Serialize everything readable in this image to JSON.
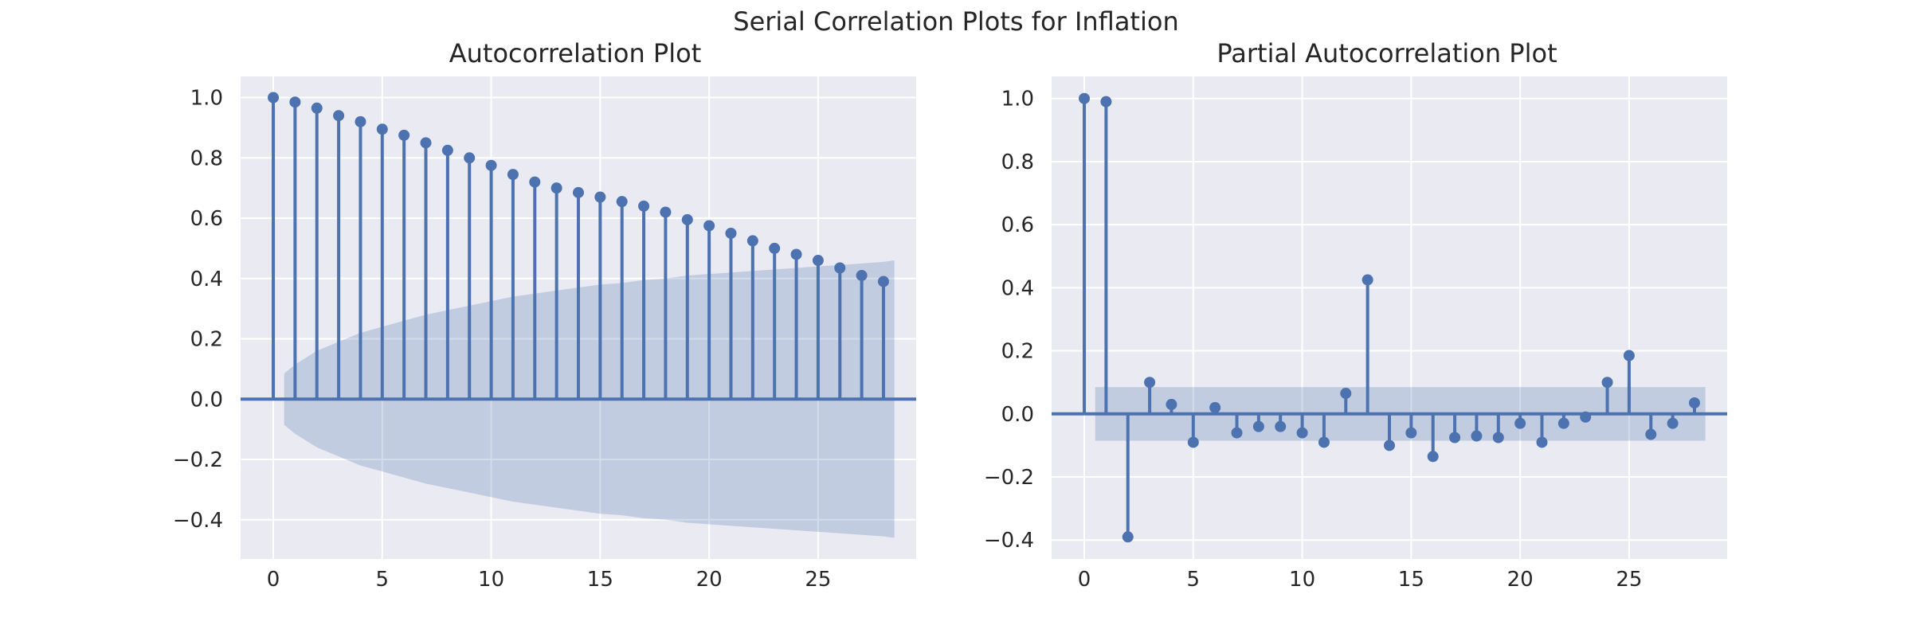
{
  "figure": {
    "suptitle": "Serial Correlation Plots for Inflation"
  },
  "chart_data": [
    {
      "type": "stem",
      "title": "Autocorrelation Plot",
      "xlabel": "",
      "ylabel": "",
      "xlim": [
        -1.5,
        29.5
      ],
      "ylim": [
        -0.53,
        1.07
      ],
      "xticks": [
        0,
        5,
        10,
        15,
        20,
        25
      ],
      "yticks": [
        -0.4,
        -0.2,
        0.0,
        0.2,
        0.4,
        0.6,
        0.8,
        1.0
      ],
      "ytick_labels": [
        "−0.4",
        "−0.2",
        "0.0",
        "0.2",
        "0.4",
        "0.6",
        "0.8",
        "1.0"
      ],
      "xtick_labels": [
        "0",
        "5",
        "10",
        "15",
        "20",
        "25"
      ],
      "grid": true,
      "color": "#4c72b0",
      "lags": [
        0,
        1,
        2,
        3,
        4,
        5,
        6,
        7,
        8,
        9,
        10,
        11,
        12,
        13,
        14,
        15,
        16,
        17,
        18,
        19,
        20,
        21,
        22,
        23,
        24,
        25,
        26,
        27,
        28
      ],
      "values": [
        1.0,
        0.985,
        0.965,
        0.94,
        0.92,
        0.895,
        0.875,
        0.85,
        0.825,
        0.8,
        0.775,
        0.745,
        0.72,
        0.7,
        0.685,
        0.67,
        0.655,
        0.64,
        0.62,
        0.595,
        0.575,
        0.55,
        0.525,
        0.5,
        0.48,
        0.46,
        0.435,
        0.41,
        0.39
      ],
      "confidence_band": {
        "x": [
          0.5,
          1,
          2,
          3,
          4,
          5,
          6,
          7,
          8,
          9,
          10,
          11,
          12,
          13,
          14,
          15,
          16,
          17,
          18,
          19,
          20,
          21,
          22,
          23,
          24,
          25,
          26,
          27,
          28,
          28.5
        ],
        "upper": [
          0.085,
          0.115,
          0.16,
          0.19,
          0.22,
          0.24,
          0.26,
          0.28,
          0.295,
          0.31,
          0.325,
          0.34,
          0.35,
          0.36,
          0.37,
          0.38,
          0.385,
          0.395,
          0.4,
          0.41,
          0.415,
          0.42,
          0.425,
          0.43,
          0.435,
          0.44,
          0.445,
          0.45,
          0.455,
          0.46
        ]
      }
    },
    {
      "type": "stem",
      "title": "Partial Autocorrelation Plot",
      "xlabel": "",
      "ylabel": "",
      "xlim": [
        -1.5,
        29.5
      ],
      "ylim": [
        -0.46,
        1.07
      ],
      "xticks": [
        0,
        5,
        10,
        15,
        20,
        25
      ],
      "yticks": [
        -0.4,
        -0.2,
        0.0,
        0.2,
        0.4,
        0.6,
        0.8,
        1.0
      ],
      "ytick_labels": [
        "−0.4",
        "−0.2",
        "0.0",
        "0.2",
        "0.4",
        "0.6",
        "0.8",
        "1.0"
      ],
      "xtick_labels": [
        "0",
        "5",
        "10",
        "15",
        "20",
        "25"
      ],
      "grid": true,
      "color": "#4c72b0",
      "lags": [
        0,
        1,
        2,
        3,
        4,
        5,
        6,
        7,
        8,
        9,
        10,
        11,
        12,
        13,
        14,
        15,
        16,
        17,
        18,
        19,
        20,
        21,
        22,
        23,
        24,
        25,
        26,
        27,
        28
      ],
      "values": [
        1.0,
        0.99,
        -0.39,
        0.1,
        0.03,
        -0.09,
        0.02,
        -0.06,
        -0.04,
        -0.04,
        -0.06,
        -0.09,
        0.065,
        0.425,
        -0.1,
        -0.06,
        -0.135,
        -0.075,
        -0.07,
        -0.075,
        -0.03,
        -0.09,
        -0.03,
        -0.01,
        0.1,
        0.185,
        -0.065,
        -0.03,
        0.035
      ],
      "confidence_band": {
        "x": [
          0.5,
          28.5
        ],
        "upper": [
          0.085,
          0.085
        ]
      }
    }
  ]
}
